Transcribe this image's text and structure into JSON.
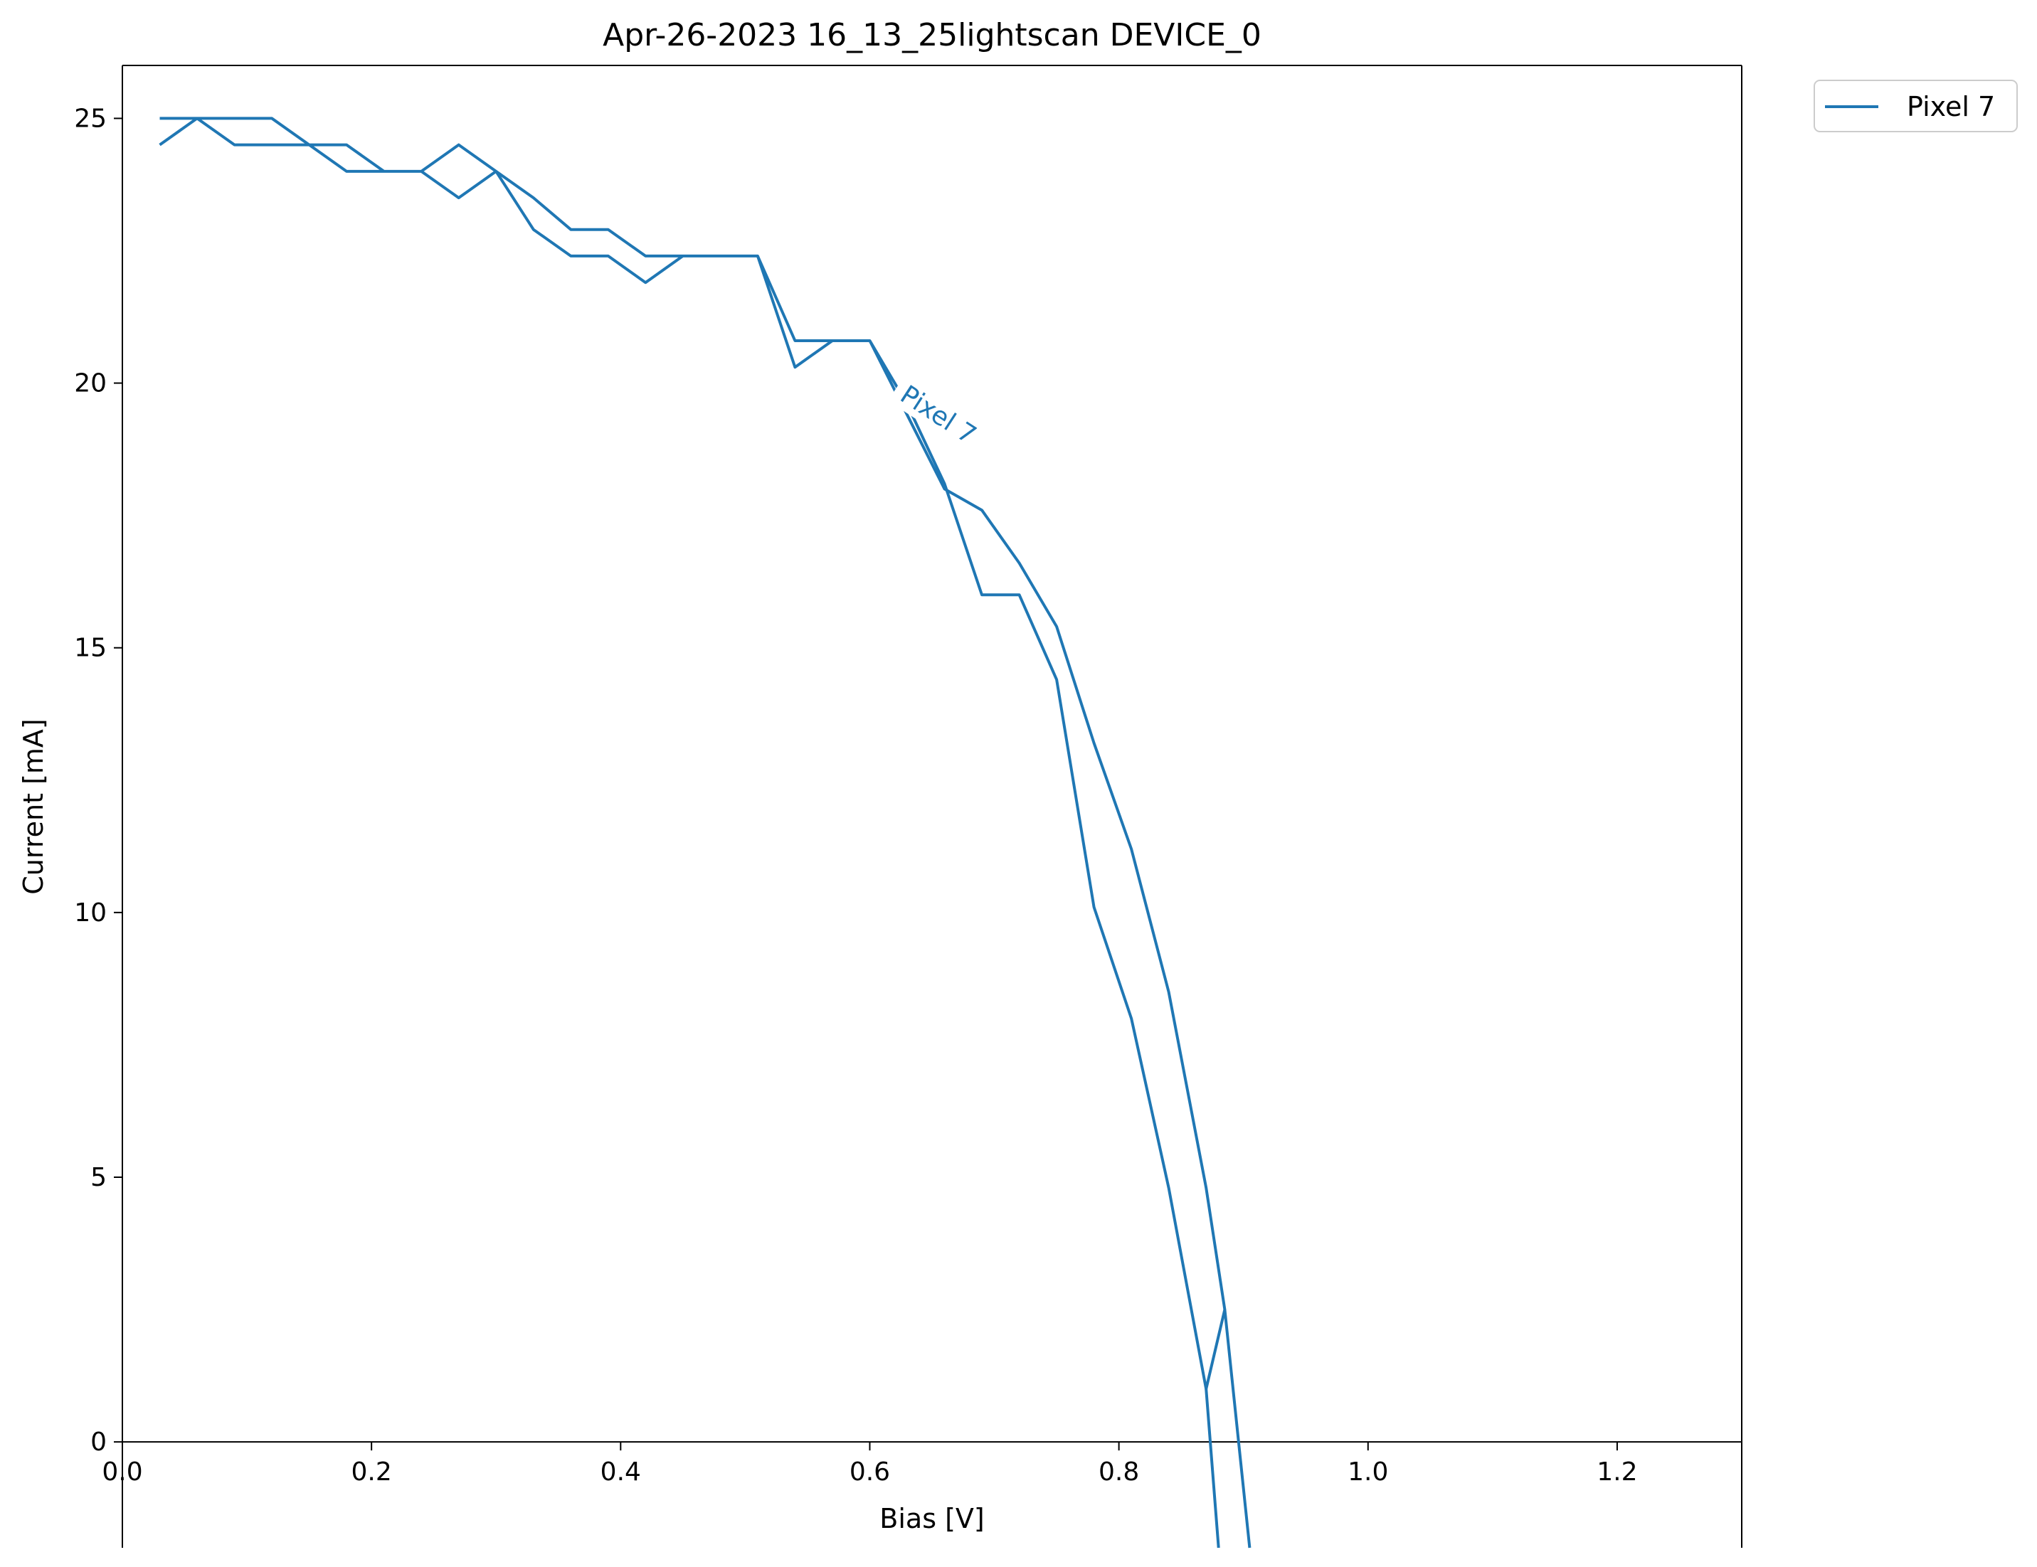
{
  "chart_data": {
    "type": "line",
    "title": "Apr-26-2023 16_13_25lightscan DEVICE_0",
    "xlabel": "Bias [V]",
    "ylabel": "Current [mA]",
    "xlim": [
      0.0,
      1.3
    ],
    "ylim": [
      -2.0,
      26.0
    ],
    "x_ticks": [
      0.0,
      0.2,
      0.4,
      0.6,
      0.8,
      1.0,
      1.2
    ],
    "x_tick_labels": [
      "0.0",
      "0.2",
      "0.4",
      "0.6",
      "0.8",
      "1.0",
      "1.2"
    ],
    "y_ticks": [
      0,
      5,
      10,
      15,
      20,
      25
    ],
    "y_tick_labels": [
      "0",
      "5",
      "10",
      "15",
      "20",
      "25"
    ],
    "grid": false,
    "legend_position": "outside-top-right",
    "color": "#1f77b4",
    "series": [
      {
        "name": "Pixel 7",
        "inline_label": "Pixel 7",
        "x": [
          0.03,
          0.06,
          0.09,
          0.12,
          0.15,
          0.18,
          0.21,
          0.24,
          0.27,
          0.3,
          0.33,
          0.36,
          0.39,
          0.42,
          0.45,
          0.48,
          0.51,
          0.54,
          0.57,
          0.6,
          0.63,
          0.66,
          0.69,
          0.72,
          0.75,
          0.78,
          0.81,
          0.84,
          0.87,
          0.885,
          0.87,
          0.84,
          0.81,
          0.78,
          0.75,
          0.72,
          0.69,
          0.66,
          0.63,
          0.6,
          0.57,
          0.54,
          0.51,
          0.48,
          0.45,
          0.42,
          0.39,
          0.36,
          0.33,
          0.3,
          0.27,
          0.24,
          0.21,
          0.18,
          0.15,
          0.12,
          0.09,
          0.06,
          0.03,
          0.03
        ],
        "y": [
          24.5,
          25.0,
          25.0,
          25.0,
          24.5,
          24.5,
          24.0,
          24.0,
          24.5,
          24.0,
          23.5,
          22.9,
          22.9,
          22.4,
          22.4,
          22.4,
          22.4,
          20.8,
          20.8,
          20.8,
          19.4,
          18.0,
          17.6,
          16.6,
          15.4,
          13.2,
          11.2,
          8.5,
          4.8,
          2.5,
          1.0,
          4.8,
          8.0,
          10.1,
          14.4,
          16.0,
          16.0,
          18.1,
          19.6,
          20.8,
          20.8,
          20.3,
          22.4,
          22.4,
          22.4,
          21.9,
          22.4,
          22.4,
          22.9,
          24.0,
          23.5,
          24.0,
          24.0,
          24.0,
          24.5,
          24.5,
          24.5,
          25.0,
          25.0,
          25.0
        ]
      }
    ],
    "extra_segments": [
      {
        "x": [
          0.885,
          0.905
        ],
        "y": [
          2.5,
          -2.0
        ]
      },
      {
        "x": [
          0.87,
          0.88
        ],
        "y": [
          1.0,
          -2.0
        ]
      }
    ]
  }
}
